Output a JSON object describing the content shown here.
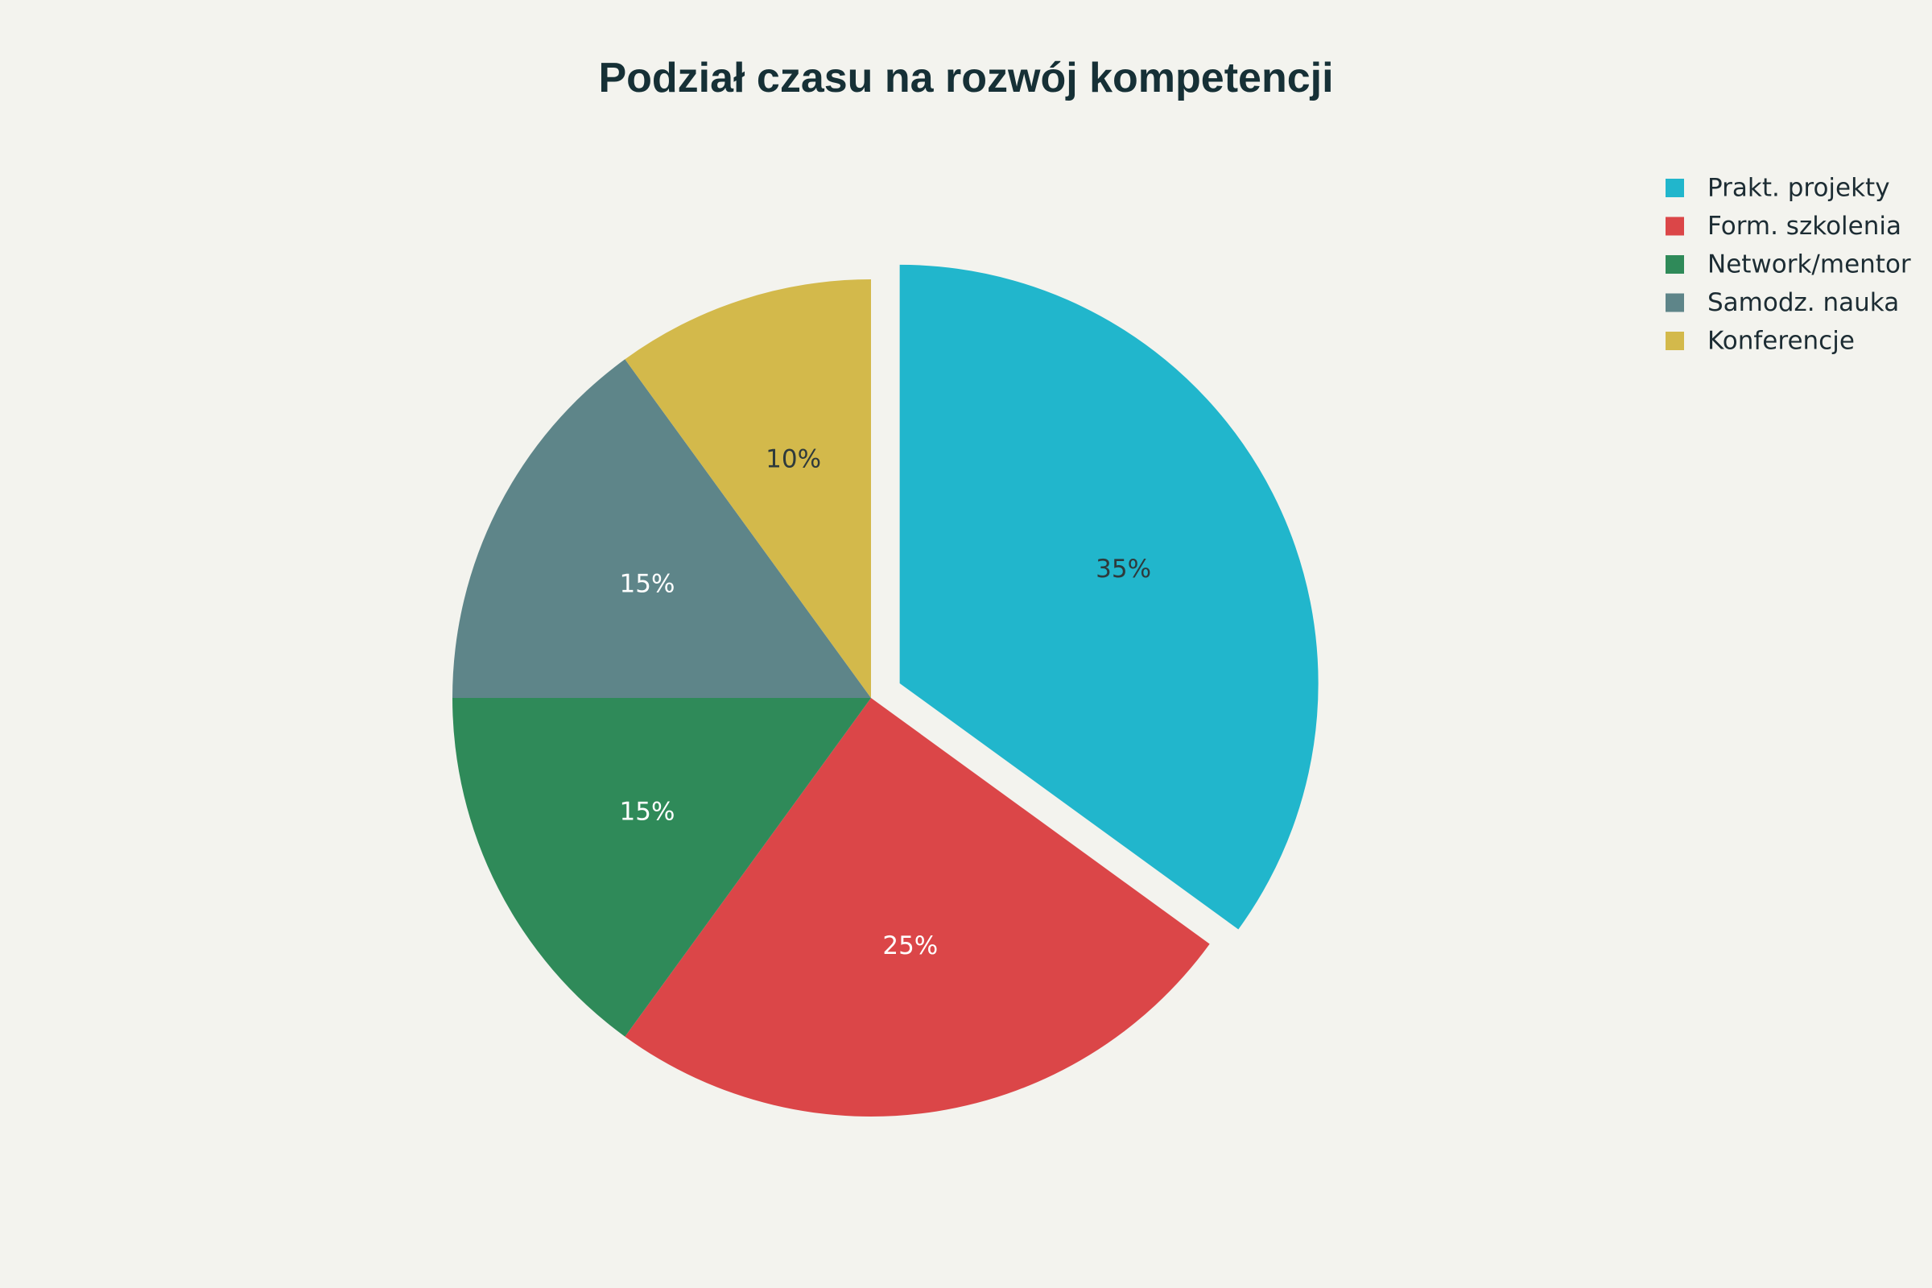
{
  "chart_data": {
    "type": "pie",
    "title": "Podział czasu na rozwój kompetencji",
    "labels": [
      "Prakt. projekty",
      "Form. szkolenia",
      "Network/mentor",
      "Samodz. nauka",
      "Konferencje"
    ],
    "values": [
      35,
      25,
      15,
      15,
      10
    ],
    "value_labels": [
      "35%",
      "25%",
      "15%",
      "15%",
      "10%"
    ],
    "colors": [
      "#21b6cc",
      "#db4648",
      "#2f8a59",
      "#5e8589",
      "#d3b94b"
    ],
    "label_text_colors": [
      "#2e3a3c",
      "#ffffff",
      "#ffffff",
      "#ffffff",
      "#2e3a3c"
    ],
    "exploded": [
      "Prakt. projekty"
    ],
    "start_angle": "12 o'clock",
    "direction": "clockwise",
    "legend_position": "top-right"
  }
}
